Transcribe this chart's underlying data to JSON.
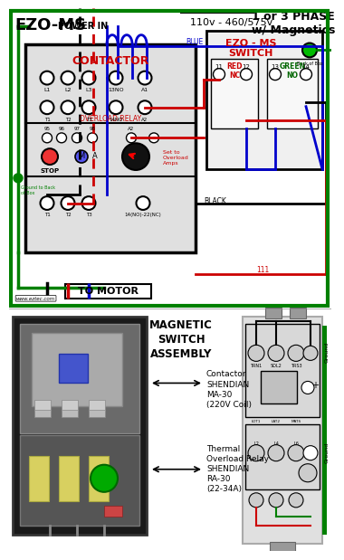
{
  "title_top_left": "EZO-MS",
  "title_top_right": "1 or 3 PHASE\nw/ Magnetics",
  "subtitle_voltage": "110v - 460/575v",
  "label_power_in": "POWER IN",
  "label_contactor": "CONTACTOR",
  "label_ezo_switch": "EZO - MS\nSWITCH",
  "label_stop": "STOP",
  "label_overload_relay": "OVERLOAD RELAY",
  "label_to_motor": "TO MOTOR",
  "label_blue": "BLUE",
  "label_black": "BLACK",
  "label_red_nc": "RED\nNC",
  "label_green_no": "GREEN\nNO",
  "label_magnetic_switch": "MAGNETIC\nSWITCH\nASSEMBLY",
  "label_contactor_model": "Contactor\nSHENDIAN\nMA-30\n(220V Coil)",
  "label_relay_model": "Thermal\nOverload Relay\nSHENDIAN\nRA-30\n(22-34A)",
  "label_set_overload": "Set to\nOverload\nAmps",
  "label_14no22nc": "14(NO)-22(NC)",
  "label_ground": "Ground",
  "label_www": "www.eztec.com",
  "colors": {
    "green": "#008000",
    "red": "#cc0000",
    "blue": "#0000cc",
    "black": "#000000",
    "white": "#ffffff",
    "gray": "#aaaaaa",
    "light_gray": "#d0d0d0",
    "dark_gray": "#555555",
    "contactor_bg": "#e8e8e8",
    "switch_bg": "#f0f0f0",
    "text_red": "#cc0000",
    "text_green": "#006600",
    "bg_top": "#d8e8d8"
  },
  "fig_width": 3.56,
  "fig_height": 6.0
}
